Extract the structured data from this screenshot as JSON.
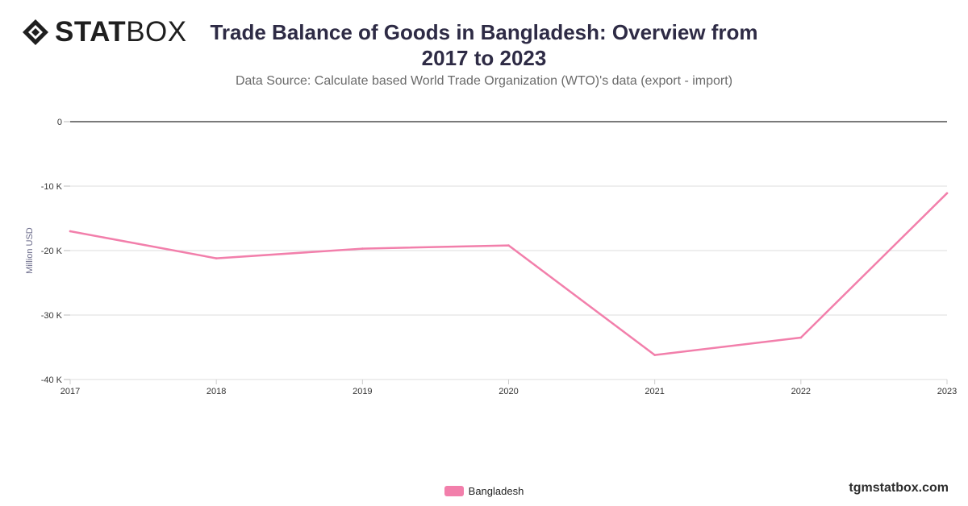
{
  "brand": {
    "logo_bold": "STAT",
    "logo_light": "BOX",
    "website": "tgmstatbox.com",
    "logo_color": "#1f1f1f"
  },
  "chart_data": {
    "type": "line",
    "title": "Trade Balance of Goods in Bangladesh: Overview from 2017 to 2023",
    "subtitle": "Data Source: Calculate based World Trade Organization (WTO)'s data (export - import)",
    "xlabel": "",
    "ylabel": "Million USD",
    "categories": [
      "2017",
      "2018",
      "2019",
      "2020",
      "2021",
      "2022",
      "2023"
    ],
    "y_ticks": [
      {
        "value": 0,
        "label": "0"
      },
      {
        "value": -10000,
        "label": "-10 K"
      },
      {
        "value": -20000,
        "label": "-20 K"
      },
      {
        "value": -30000,
        "label": "-30 K"
      },
      {
        "value": -40000,
        "label": "-40 K"
      }
    ],
    "ylim": [
      -40000,
      0
    ],
    "grid": true,
    "legend_position": "bottom-center",
    "series": [
      {
        "name": "Bangladesh",
        "color": "#f27fab",
        "values": [
          -17000,
          -21200,
          -19700,
          -19200,
          -36200,
          -33500,
          -11100
        ]
      }
    ]
  }
}
